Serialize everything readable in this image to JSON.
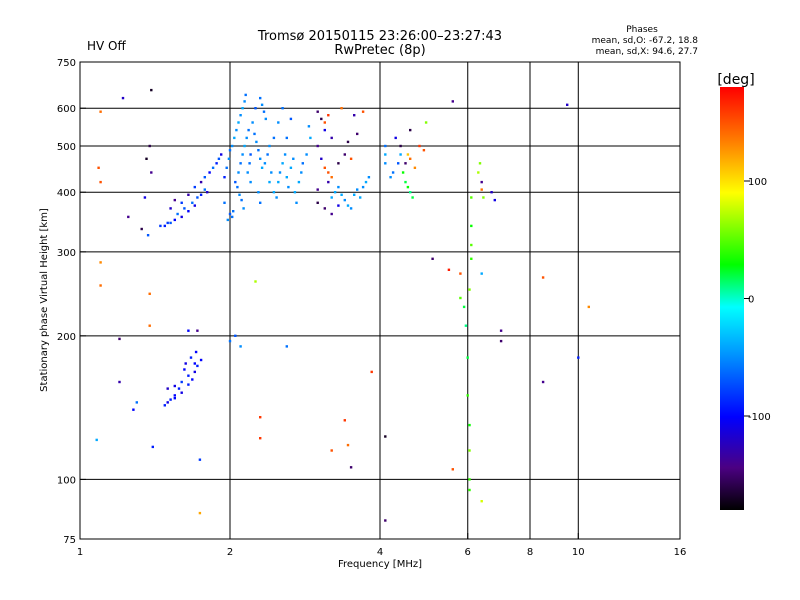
{
  "chart_data": {
    "type": "scatter",
    "title": "Tromsø 20150115 23:26:00–23:27:43",
    "subtitle": "RwPretec (8p)",
    "status_label": "HV Off",
    "status_color": "#ff0000",
    "xlabel": "Frequency [MHz]",
    "ylabel": "Stationary phase Virtual Height [km]",
    "x_scale": "log2",
    "y_scale": "log",
    "xlim": [
      1,
      16
    ],
    "ylim": [
      75,
      750
    ],
    "x_ticks": [
      1,
      2,
      4,
      6,
      8,
      10,
      16
    ],
    "x_tick_labels": [
      "1",
      "2",
      "4",
      "6",
      "8",
      "10",
      "16"
    ],
    "y_ticks": [
      75,
      100,
      200,
      300,
      400,
      500,
      600,
      750
    ],
    "y_tick_labels": [
      "75",
      "100",
      "200",
      "300",
      "400",
      "500",
      "600",
      "750"
    ],
    "x_gridlines": [
      2,
      4,
      6,
      8,
      10
    ],
    "y_gridlines": [
      100,
      200,
      300,
      400,
      500,
      600
    ],
    "stats": {
      "title": "Phases",
      "line1": "mean, sd,O: -67.2, 18.8",
      "line2": "mean, sd,X:  94.6, 27.7"
    },
    "colorbar": {
      "unit": "[deg]",
      "range": [
        -180,
        180
      ],
      "ticks": [
        100,
        0,
        -100
      ],
      "tick_labels": [
        "100",
        "0",
        "-100"
      ]
    },
    "points": [
      [
        1.22,
        630,
        -120
      ],
      [
        1.39,
        655,
        -170
      ],
      [
        1.1,
        590,
        140
      ],
      [
        1.09,
        450,
        150
      ],
      [
        1.1,
        420,
        150
      ],
      [
        1.38,
        500,
        -160
      ],
      [
        1.36,
        470,
        -170
      ],
      [
        1.39,
        440,
        -140
      ],
      [
        1.35,
        390,
        -110
      ],
      [
        1.25,
        355,
        -140
      ],
      [
        1.33,
        335,
        -160
      ],
      [
        1.37,
        325,
        -70
      ],
      [
        1.1,
        285,
        130
      ],
      [
        1.1,
        255,
        140
      ],
      [
        1.38,
        245,
        140
      ],
      [
        1.38,
        210,
        140
      ],
      [
        1.2,
        197,
        -150
      ],
      [
        1.2,
        160,
        -130
      ],
      [
        1.28,
        140,
        -100
      ],
      [
        1.08,
        121,
        -40
      ],
      [
        1.4,
        117,
        -90
      ],
      [
        1.3,
        145,
        -60
      ],
      [
        1.5,
        155,
        -120
      ],
      [
        1.45,
        340,
        -80
      ],
      [
        1.48,
        340,
        -90
      ],
      [
        1.5,
        345,
        -80
      ],
      [
        1.52,
        345,
        -70
      ],
      [
        1.55,
        350,
        -100
      ],
      [
        1.57,
        360,
        -60
      ],
      [
        1.6,
        355,
        -110
      ],
      [
        1.62,
        370,
        -70
      ],
      [
        1.65,
        365,
        -100
      ],
      [
        1.68,
        380,
        -60
      ],
      [
        1.7,
        375,
        -110
      ],
      [
        1.72,
        390,
        -70
      ],
      [
        1.75,
        395,
        -90
      ],
      [
        1.78,
        405,
        -60
      ],
      [
        1.8,
        400,
        -120
      ],
      [
        1.52,
        370,
        -120
      ],
      [
        1.55,
        385,
        -140
      ],
      [
        1.6,
        380,
        -80
      ],
      [
        1.65,
        395,
        -130
      ],
      [
        1.7,
        410,
        -80
      ],
      [
        1.75,
        420,
        -130
      ],
      [
        1.78,
        430,
        -70
      ],
      [
        1.82,
        440,
        -100
      ],
      [
        1.85,
        450,
        -60
      ],
      [
        1.88,
        460,
        -90
      ],
      [
        1.9,
        470,
        -70
      ],
      [
        1.92,
        480,
        -110
      ],
      [
        1.95,
        430,
        -90
      ],
      [
        1.97,
        450,
        -60
      ],
      [
        1.99,
        470,
        -50
      ],
      [
        2.0,
        490,
        -60
      ],
      [
        2.02,
        500,
        -50
      ],
      [
        2.04,
        520,
        -40
      ],
      [
        2.06,
        540,
        -50
      ],
      [
        2.08,
        560,
        -40
      ],
      [
        2.1,
        580,
        -50
      ],
      [
        2.12,
        600,
        -40
      ],
      [
        2.14,
        620,
        -50
      ],
      [
        2.15,
        640,
        -60
      ],
      [
        2.05,
        420,
        -70
      ],
      [
        2.07,
        410,
        -60
      ],
      [
        2.09,
        395,
        -50
      ],
      [
        2.11,
        385,
        -60
      ],
      [
        2.13,
        370,
        -50
      ],
      [
        2.0,
        360,
        -70
      ],
      [
        2.02,
        355,
        -60
      ],
      [
        1.98,
        350,
        -50
      ],
      [
        2.03,
        365,
        -60
      ],
      [
        1.95,
        380,
        -60
      ],
      [
        2.08,
        440,
        -50
      ],
      [
        2.1,
        460,
        -60
      ],
      [
        2.12,
        480,
        -50
      ],
      [
        2.14,
        500,
        -40
      ],
      [
        2.16,
        520,
        -50
      ],
      [
        2.18,
        540,
        -60
      ],
      [
        2.17,
        440,
        -50
      ],
      [
        2.19,
        460,
        -60
      ],
      [
        2.2,
        480,
        -70
      ],
      [
        2.2,
        420,
        -50
      ],
      [
        2.3,
        630,
        -60
      ],
      [
        2.32,
        610,
        -50
      ],
      [
        2.34,
        590,
        -60
      ],
      [
        2.36,
        570,
        -50
      ],
      [
        2.25,
        600,
        -70
      ],
      [
        2.22,
        560,
        -50
      ],
      [
        2.4,
        420,
        -40
      ],
      [
        2.42,
        440,
        -50
      ],
      [
        2.45,
        400,
        -40
      ],
      [
        2.48,
        390,
        -50
      ],
      [
        2.5,
        420,
        -40
      ],
      [
        2.52,
        440,
        -50
      ],
      [
        2.55,
        460,
        -40
      ],
      [
        2.58,
        480,
        -50
      ],
      [
        2.6,
        430,
        -40
      ],
      [
        2.62,
        410,
        -50
      ],
      [
        2.65,
        450,
        -40
      ],
      [
        2.68,
        470,
        -50
      ],
      [
        2.7,
        400,
        -40
      ],
      [
        2.72,
        380,
        -50
      ],
      [
        2.75,
        420,
        -40
      ],
      [
        2.78,
        440,
        -50
      ],
      [
        2.8,
        460,
        -60
      ],
      [
        2.85,
        480,
        -50
      ],
      [
        2.9,
        520,
        -40
      ],
      [
        2.88,
        550,
        -50
      ],
      [
        2.6,
        520,
        -60
      ],
      [
        2.65,
        570,
        -70
      ],
      [
        2.55,
        600,
        -60
      ],
      [
        2.5,
        560,
        -50
      ],
      [
        2.45,
        520,
        -60
      ],
      [
        2.4,
        500,
        -50
      ],
      [
        2.38,
        480,
        -60
      ],
      [
        2.35,
        460,
        -50
      ],
      [
        2.32,
        450,
        -40
      ],
      [
        2.3,
        470,
        -50
      ],
      [
        2.28,
        490,
        -60
      ],
      [
        2.26,
        510,
        -50
      ],
      [
        2.24,
        530,
        -60
      ],
      [
        2.28,
        400,
        -50
      ],
      [
        2.3,
        380,
        -60
      ],
      [
        3.0,
        590,
        -150
      ],
      [
        3.05,
        570,
        -160
      ],
      [
        3.1,
        560,
        150
      ],
      [
        3.15,
        580,
        160
      ],
      [
        3.1,
        540,
        -110
      ],
      [
        3.2,
        520,
        -130
      ],
      [
        3.0,
        500,
        -140
      ],
      [
        3.05,
        470,
        -120
      ],
      [
        3.1,
        450,
        150
      ],
      [
        3.15,
        440,
        150
      ],
      [
        3.2,
        430,
        140
      ],
      [
        3.3,
        460,
        -160
      ],
      [
        3.4,
        480,
        -150
      ],
      [
        3.5,
        470,
        150
      ],
      [
        3.2,
        390,
        -40
      ],
      [
        3.25,
        400,
        -40
      ],
      [
        3.3,
        410,
        -50
      ],
      [
        3.35,
        395,
        -40
      ],
      [
        3.4,
        385,
        -50
      ],
      [
        3.45,
        375,
        -40
      ],
      [
        3.5,
        370,
        -50
      ],
      [
        3.55,
        395,
        -40
      ],
      [
        3.6,
        405,
        -50
      ],
      [
        3.65,
        390,
        -40
      ],
      [
        3.7,
        410,
        -50
      ],
      [
        3.75,
        420,
        -40
      ],
      [
        3.8,
        430,
        -50
      ],
      [
        3.15,
        420,
        -130
      ],
      [
        3.0,
        380,
        -160
      ],
      [
        3.1,
        370,
        -150
      ],
      [
        3.2,
        360,
        -140
      ],
      [
        3.3,
        375,
        -110
      ],
      [
        3.0,
        405,
        -140
      ],
      [
        3.35,
        600,
        140
      ],
      [
        3.6,
        530,
        -150
      ],
      [
        3.55,
        580,
        -130
      ],
      [
        3.7,
        590,
        150
      ],
      [
        3.45,
        510,
        -160
      ],
      [
        4.1,
        460,
        -50
      ],
      [
        4.1,
        480,
        -40
      ],
      [
        4.1,
        500,
        -60
      ],
      [
        4.2,
        430,
        -50
      ],
      [
        4.25,
        440,
        -60
      ],
      [
        4.35,
        460,
        -70
      ],
      [
        4.4,
        480,
        -40
      ],
      [
        4.45,
        440,
        30
      ],
      [
        4.5,
        420,
        20
      ],
      [
        4.55,
        410,
        30
      ],
      [
        4.6,
        400,
        10
      ],
      [
        4.65,
        390,
        20
      ],
      [
        4.6,
        470,
        140
      ],
      [
        4.7,
        450,
        130
      ],
      [
        4.5,
        460,
        -150
      ],
      [
        4.8,
        500,
        160
      ],
      [
        4.9,
        490,
        150
      ],
      [
        4.95,
        560,
        60
      ],
      [
        4.55,
        480,
        110
      ],
      [
        4.4,
        500,
        -160
      ],
      [
        4.3,
        520,
        -110
      ],
      [
        2.05,
        200,
        -70
      ],
      [
        2.0,
        195,
        -60
      ],
      [
        2.1,
        190,
        -50
      ],
      [
        2.25,
        260,
        70
      ],
      [
        2.3,
        135,
        160
      ],
      [
        2.3,
        122,
        160
      ],
      [
        2.6,
        190,
        -60
      ],
      [
        1.65,
        205,
        -100
      ],
      [
        1.72,
        205,
        -140
      ],
      [
        1.74,
        85,
        120
      ],
      [
        1.74,
        110,
        -80
      ],
      [
        1.7,
        175,
        -100
      ],
      [
        1.65,
        165,
        -90
      ],
      [
        1.6,
        160,
        -80
      ],
      [
        1.55,
        150,
        -100
      ],
      [
        1.5,
        145,
        -110
      ],
      [
        1.52,
        147,
        -90
      ],
      [
        1.55,
        148,
        -100
      ],
      [
        1.6,
        152,
        -110
      ],
      [
        1.65,
        158,
        -90
      ],
      [
        1.68,
        162,
        -100
      ],
      [
        1.7,
        168,
        -110
      ],
      [
        1.72,
        173,
        -90
      ],
      [
        1.75,
        178,
        -100
      ],
      [
        1.62,
        170,
        -100
      ],
      [
        1.58,
        155,
        -90
      ],
      [
        1.63,
        175,
        -110
      ],
      [
        1.67,
        180,
        -90
      ],
      [
        1.71,
        185,
        -100
      ],
      [
        1.55,
        157,
        -110
      ],
      [
        1.48,
        143,
        -90
      ],
      [
        3.2,
        115,
        150
      ],
      [
        3.4,
        133,
        160
      ],
      [
        3.45,
        118,
        140
      ],
      [
        3.5,
        106,
        -150
      ],
      [
        3.85,
        168,
        160
      ],
      [
        4.1,
        123,
        -170
      ],
      [
        4.1,
        82,
        -150
      ],
      [
        5.1,
        290,
        -150
      ],
      [
        5.5,
        275,
        170
      ],
      [
        5.6,
        105,
        150
      ],
      [
        5.8,
        270,
        150
      ],
      [
        5.8,
        240,
        50
      ],
      [
        5.9,
        230,
        20
      ],
      [
        5.95,
        210,
        10
      ],
      [
        6.0,
        180,
        20
      ],
      [
        6.0,
        150,
        40
      ],
      [
        6.05,
        130,
        30
      ],
      [
        6.05,
        115,
        60
      ],
      [
        6.05,
        100,
        40
      ],
      [
        6.05,
        95,
        40
      ],
      [
        6.05,
        250,
        60
      ],
      [
        6.1,
        290,
        40
      ],
      [
        6.1,
        310,
        50
      ],
      [
        6.1,
        340,
        30
      ],
      [
        6.1,
        390,
        50
      ],
      [
        6.3,
        440,
        70
      ],
      [
        6.35,
        460,
        60
      ],
      [
        6.4,
        420,
        -140
      ],
      [
        6.4,
        405,
        140
      ],
      [
        6.45,
        390,
        60
      ],
      [
        6.4,
        270,
        -40
      ],
      [
        6.4,
        90,
        80
      ],
      [
        6.7,
        400,
        -120
      ],
      [
        6.8,
        385,
        -110
      ],
      [
        7.0,
        205,
        -140
      ],
      [
        7.0,
        195,
        -150
      ],
      [
        8.5,
        265,
        150
      ],
      [
        8.5,
        160,
        -140
      ],
      [
        9.5,
        610,
        -120
      ],
      [
        10.0,
        180,
        -90
      ],
      [
        10.5,
        230,
        130
      ],
      [
        5.6,
        620,
        -140
      ],
      [
        4.6,
        540,
        -160
      ]
    ]
  }
}
